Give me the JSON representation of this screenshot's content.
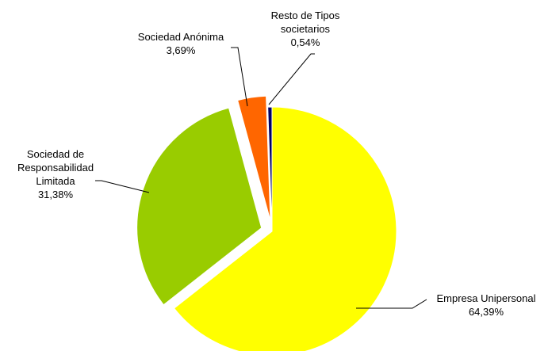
{
  "chart_data": {
    "type": "pie",
    "title": "",
    "legend": "none",
    "start_angle_deg": 0,
    "direction": "clockwise",
    "slices": [
      {
        "label_lines": [
          "Empresa Unipersonal"
        ],
        "value_text": "64,39%",
        "value": 64.39,
        "color": "#FFFF00"
      },
      {
        "label_lines": [
          "Sociedad de",
          "Responsabilidad",
          "Limitada"
        ],
        "value_text": "31,38%",
        "value": 31.38,
        "color": "#99CC00",
        "exploded": true
      },
      {
        "label_lines": [
          "Sociedad Anónima"
        ],
        "value_text": "3,69%",
        "value": 3.69,
        "color": "#FF6600",
        "exploded": true
      },
      {
        "label_lines": [
          "Resto de Tipos",
          "societarios"
        ],
        "value_text": "0,54%",
        "value": 0.54,
        "color": "#000066"
      }
    ]
  }
}
